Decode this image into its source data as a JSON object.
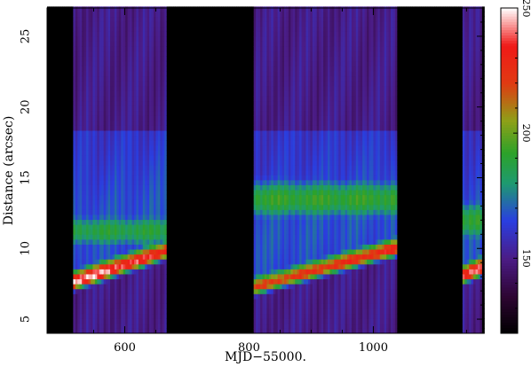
{
  "chart_data": {
    "type": "heatmap",
    "title": "",
    "xlabel": "MJD−55000.",
    "ylabel": "Distance (arcsec)",
    "xlim": [
      475,
      1178
    ],
    "ylim": [
      4,
      27
    ],
    "x_ticks": [
      600,
      800,
      1000
    ],
    "x_tick_labels": [
      "600",
      "800",
      "1000"
    ],
    "y_ticks": [
      5,
      10,
      15,
      20,
      25
    ],
    "y_tick_labels": [
      "5",
      "10",
      "15",
      "20",
      "25"
    ],
    "colorbar": {
      "range": [
        120,
        250
      ],
      "ticks": [
        150,
        200,
        250
      ],
      "tick_labels": [
        "150",
        "200",
        "250"
      ],
      "colormap": [
        {
          "v": 120,
          "c": "#000000"
        },
        {
          "v": 135,
          "c": "#2e0533"
        },
        {
          "v": 150,
          "c": "#4b1c86"
        },
        {
          "v": 165,
          "c": "#2a3ee0"
        },
        {
          "v": 180,
          "c": "#1e9a70"
        },
        {
          "v": 192,
          "c": "#2ca22a"
        },
        {
          "v": 205,
          "c": "#8ea018"
        },
        {
          "v": 220,
          "c": "#e03a12"
        },
        {
          "v": 235,
          "c": "#f01a18"
        },
        {
          "v": 250,
          "c": "#ffffff"
        }
      ]
    },
    "observed_intervals": [
      [
        518,
        668
      ],
      [
        806,
        1038
      ],
      [
        1142,
        1174
      ]
    ],
    "gap_intervals": [
      [
        475,
        518
      ],
      [
        668,
        806
      ],
      [
        1038,
        1142
      ],
      [
        1174,
        1178
      ]
    ],
    "features": {
      "ridge": {
        "description_none": "",
        "segments": [
          {
            "x": [
              518,
              668
            ],
            "y": [
              7.6,
              9.8
            ],
            "peak": 250
          },
          {
            "x": [
              806,
              1038
            ],
            "y": [
              7.2,
              10.0
            ],
            "peak": 232
          },
          {
            "x": [
              1142,
              1174
            ],
            "y": [
              8.0,
              8.6
            ],
            "peak": 245
          }
        ]
      },
      "band": {
        "segments": [
          {
            "x": [
              518,
              668
            ],
            "y": [
              10.5,
              12.0
            ],
            "level": 188
          },
          {
            "x": [
              806,
              1038
            ],
            "y": [
              12.5,
              14.5
            ],
            "level": 192
          },
          {
            "x": [
              1142,
              1174
            ],
            "y": [
              11.0,
              13.0
            ],
            "level": 190
          }
        ]
      }
    }
  }
}
